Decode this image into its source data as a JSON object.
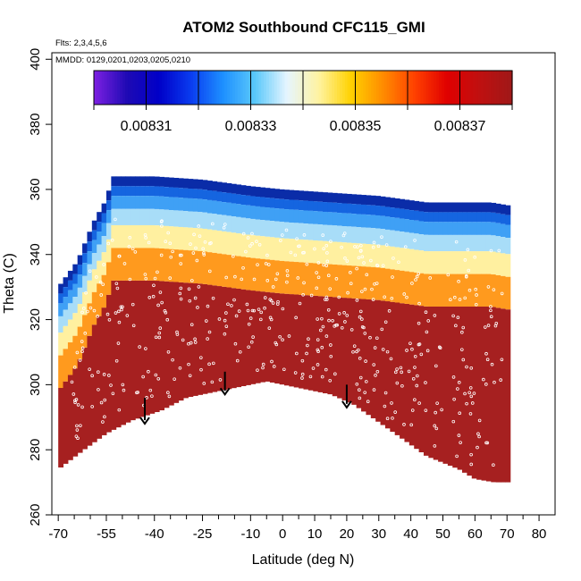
{
  "chart_data": {
    "type": "heatmap",
    "title": "ATOM2 Southbound CFC115_GMI",
    "flights_label": "Flts: 2,3,4,5,6",
    "dates_label": "MMDD: 0129,0201,0203,0205,0210",
    "xlabel": "Latitude (deg N)",
    "ylabel": "Theta (C)",
    "xlim": [
      -72,
      85
    ],
    "ylim": [
      260,
      402
    ],
    "x_ticks": [
      -70,
      -55,
      -40,
      -25,
      -10,
      0,
      10,
      20,
      30,
      40,
      50,
      60,
      70,
      80
    ],
    "x_tick_labels": [
      "-70",
      "-55",
      "-40",
      "-25",
      "-10",
      "0",
      "10",
      "20",
      "30",
      "40",
      "50",
      "60",
      "70",
      "80"
    ],
    "x_minor_ticks": [
      -65,
      -60,
      -50,
      -45,
      -35,
      -30,
      -20,
      -15,
      -5,
      5,
      15,
      25,
      35,
      45,
      55,
      65,
      75
    ],
    "y_ticks": [
      260,
      280,
      300,
      320,
      340,
      360,
      380,
      400
    ],
    "y_tick_labels": [
      "260",
      "280",
      "300",
      "320",
      "340",
      "360",
      "380",
      "400"
    ],
    "colorbar": {
      "range": [
        0.0083,
        0.00838
      ],
      "ticks": [
        0.00831,
        0.00833,
        0.00835,
        0.00837
      ],
      "tick_labels": [
        "0.00831",
        "0.00833",
        "0.00835",
        "0.00837"
      ],
      "colors": [
        "#7a1fe0",
        "#1e0ab4",
        "#0000c8",
        "#0a3cf0",
        "#1e90ff",
        "#5ac8fa",
        "#e6f5ff",
        "#fff3a0",
        "#ffd200",
        "#ff8c00",
        "#ff4000",
        "#e00000",
        "#c01010",
        "#a01818"
      ]
    },
    "field": {
      "lower_boundary": [
        [
          -70,
          274
        ],
        [
          -62,
          280
        ],
        [
          -55,
          285
        ],
        [
          -47,
          289
        ],
        [
          -38,
          292
        ],
        [
          -30,
          296
        ],
        [
          -20,
          298
        ],
        [
          -10,
          300
        ],
        [
          -5,
          301
        ],
        [
          5,
          299
        ],
        [
          15,
          297
        ],
        [
          22,
          294
        ],
        [
          35,
          285
        ],
        [
          45,
          278
        ],
        [
          55,
          274
        ],
        [
          60,
          271
        ],
        [
          66,
          270
        ],
        [
          71,
          270
        ]
      ],
      "upper_boundary": [
        [
          -70,
          330
        ],
        [
          -64,
          338
        ],
        [
          -59,
          350
        ],
        [
          -55,
          357
        ],
        [
          -53,
          364
        ],
        [
          -50,
          364
        ],
        [
          -40,
          364
        ],
        [
          -25,
          363
        ],
        [
          -10,
          361
        ],
        [
          0,
          360
        ],
        [
          15,
          359
        ],
        [
          30,
          358
        ],
        [
          45,
          356
        ],
        [
          55,
          356
        ],
        [
          65,
          356
        ],
        [
          71,
          355
        ]
      ],
      "bands": [
        {
          "label": "upper",
          "offsets": [
            0,
            3,
            6,
            10,
            15,
            22,
            32
          ],
          "colors": [
            "#0a2ca8",
            "#1565e0",
            "#3fa0f5",
            "#a8ddf8",
            "#fff0a0",
            "#ff9a1e",
            "#ff3a10"
          ]
        },
        {
          "label": "lower",
          "color": "#a62020"
        }
      ],
      "sample_points": "scattered white open circles along flight tracks"
    },
    "arrows": [
      {
        "x": -43,
        "y_top": 296,
        "y_bottom": 288
      },
      {
        "x": -18,
        "y_top": 304,
        "y_bottom": 297
      },
      {
        "x": 20,
        "y_top": 300,
        "y_bottom": 293
      }
    ]
  }
}
